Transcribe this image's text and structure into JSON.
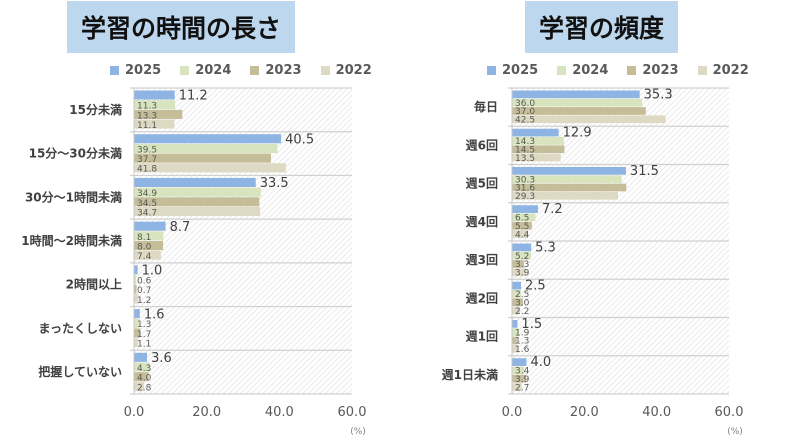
{
  "colors": {
    "2025": "#8eb4e3",
    "2024": "#d7e4bd",
    "2023": "#c4bd97",
    "2022": "#ddd9c3",
    "title_bg": "#bdd7ee"
  },
  "chart_data": [
    {
      "type": "bar",
      "orientation": "horizontal",
      "title": "学習の時間の長さ",
      "categories": [
        "15分未満",
        "15分～30分未満",
        "30分～1時間未満",
        "1時間～2時間未満",
        "2時間以上",
        "まったくしない",
        "把握していない"
      ],
      "series": [
        {
          "name": "2025",
          "values": [
            11.2,
            40.5,
            33.5,
            8.7,
            1.0,
            1.6,
            3.6
          ]
        },
        {
          "name": "2024",
          "values": [
            11.3,
            39.5,
            34.9,
            8.1,
            0.6,
            1.3,
            4.3
          ]
        },
        {
          "name": "2023",
          "values": [
            13.3,
            37.7,
            34.5,
            8.0,
            0.7,
            1.7,
            4.0
          ]
        },
        {
          "name": "2022",
          "values": [
            11.1,
            41.8,
            34.7,
            7.4,
            1.2,
            1.1,
            2.8
          ]
        }
      ],
      "xlim": [
        0,
        60
      ],
      "xticks": [
        "0.0",
        "20.0",
        "40.0",
        "60.0"
      ],
      "xlabel": "(%)",
      "legend": [
        "2025",
        "2024",
        "2023",
        "2022"
      ],
      "legend_position": "top"
    },
    {
      "type": "bar",
      "orientation": "horizontal",
      "title": "学習の頻度",
      "categories": [
        "毎日",
        "週6回",
        "週5回",
        "週4回",
        "週3回",
        "週2回",
        "週1回",
        "週1日未満"
      ],
      "series": [
        {
          "name": "2025",
          "values": [
            35.3,
            12.9,
            31.5,
            7.2,
            5.3,
            2.5,
            1.5,
            4.0
          ]
        },
        {
          "name": "2024",
          "values": [
            36.0,
            14.3,
            30.3,
            6.5,
            5.2,
            2.5,
            1.9,
            3.4
          ]
        },
        {
          "name": "2023",
          "values": [
            37.0,
            14.5,
            31.6,
            5.5,
            3.3,
            3.0,
            1.3,
            3.9
          ]
        },
        {
          "name": "2022",
          "values": [
            42.5,
            13.5,
            29.3,
            4.4,
            3.9,
            2.2,
            1.6,
            2.7
          ]
        }
      ],
      "xlim": [
        0,
        60
      ],
      "xticks": [
        "0.0",
        "20.0",
        "40.0",
        "60.0"
      ],
      "xlabel": "(%)",
      "legend": [
        "2025",
        "2024",
        "2023",
        "2022"
      ],
      "legend_position": "top"
    }
  ]
}
